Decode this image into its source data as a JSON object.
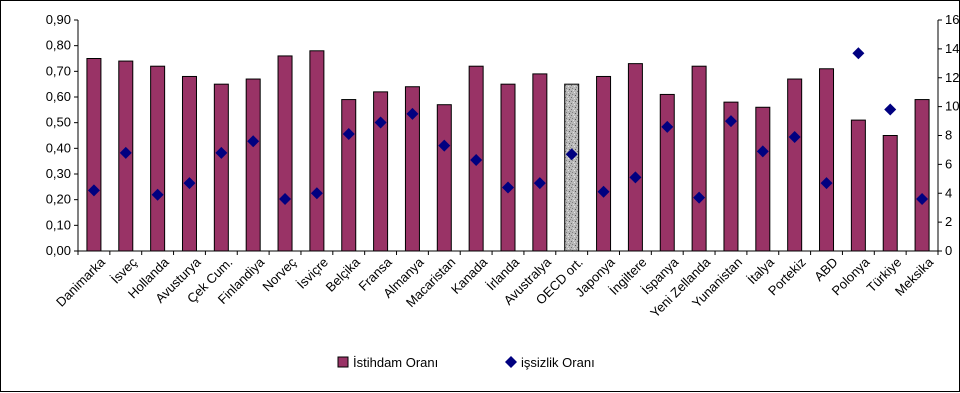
{
  "chart_data": {
    "type": "bar",
    "categories": [
      "Danimarka",
      "İsveç",
      "Hollanda",
      "Avusturya",
      "Çek Cum.",
      "Finlandiya",
      "Norveç",
      "İsviçre",
      "Belçika",
      "Fransa",
      "Almanya",
      "Macaristan",
      "Kanada",
      "İrlanda",
      "Avustralya",
      "OECD ort.",
      "Japonya",
      "İngiltere",
      "İspanya",
      "Yeni Zellanda",
      "Yunanistan",
      "İtalya",
      "Portekiz",
      "ABD",
      "Polonya",
      "Türkiye",
      "Meksika"
    ],
    "series": [
      {
        "name": "İstihdam Oranı",
        "type": "bar",
        "axis": "left",
        "color": "#993366",
        "highlight_index": 15,
        "highlight_pattern": "gray-speckle",
        "values": [
          0.75,
          0.74,
          0.72,
          0.68,
          0.65,
          0.67,
          0.76,
          0.78,
          0.59,
          0.62,
          0.64,
          0.57,
          0.72,
          0.65,
          0.69,
          0.65,
          0.68,
          0.73,
          0.61,
          0.72,
          0.58,
          0.56,
          0.67,
          0.71,
          0.51,
          0.45,
          0.59
        ]
      },
      {
        "name": "işsizlik Oranı",
        "type": "scatter",
        "axis": "right",
        "color": "#000080",
        "marker": "diamond",
        "values": [
          4.2,
          6.8,
          3.9,
          4.7,
          6.8,
          7.6,
          3.6,
          4.0,
          8.1,
          8.9,
          9.5,
          7.3,
          6.3,
          4.4,
          4.7,
          6.7,
          4.1,
          5.1,
          8.6,
          3.7,
          9.0,
          6.9,
          7.9,
          4.7,
          13.7,
          9.8,
          3.6
        ]
      }
    ],
    "y_left": {
      "lim": [
        0,
        0.9
      ],
      "ticks": [
        "0,00",
        "0,10",
        "0,20",
        "0,30",
        "0,40",
        "0,50",
        "0,60",
        "0,70",
        "0,80",
        "0,90"
      ]
    },
    "y_right": {
      "lim": [
        0,
        16
      ],
      "ticks": [
        "0",
        "2",
        "4",
        "6",
        "8",
        "10",
        "12",
        "14",
        "16"
      ]
    },
    "grid": false,
    "legend_position": "bottom-center",
    "title": "",
    "xlabel": "",
    "ylabel": ""
  }
}
